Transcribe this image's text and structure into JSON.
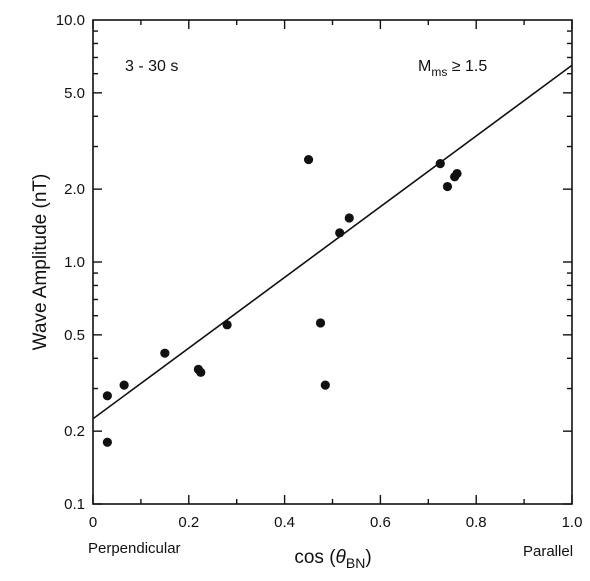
{
  "chart_data": {
    "type": "scatter",
    "xlabel_prefix": "cos (",
    "xlabel_theta": "θ",
    "xlabel_sub": "BN",
    "xlabel_suffix": ")",
    "ylabel": "Wave Amplitude (nT)",
    "xlim": [
      0,
      1.0
    ],
    "ylim": [
      0.1,
      10.0
    ],
    "yscale": "log",
    "x_tick_labels": [
      "0",
      "0.2",
      "0.4",
      "0.6",
      "0.8",
      "1.0"
    ],
    "x_ticks": [
      0,
      0.2,
      0.4,
      0.6,
      0.8,
      1.0
    ],
    "y_tick_labels": [
      "0.1",
      "0.2",
      "0.5",
      "1.0",
      "2.0",
      "5.0",
      "10.0"
    ],
    "y_ticks": [
      0.1,
      0.2,
      0.5,
      1.0,
      2.0,
      5.0,
      10.0
    ],
    "annotation_left": "3 - 30 s",
    "annotation_right_main": "M",
    "annotation_right_sub": "ms",
    "annotation_right_rest": " ≥ 1.5",
    "x_end_left": "Perpendicular",
    "x_end_right": "Parallel",
    "points": [
      {
        "x": 0.03,
        "y": 0.28
      },
      {
        "x": 0.03,
        "y": 0.18
      },
      {
        "x": 0.065,
        "y": 0.31
      },
      {
        "x": 0.15,
        "y": 0.42
      },
      {
        "x": 0.22,
        "y": 0.36
      },
      {
        "x": 0.225,
        "y": 0.35
      },
      {
        "x": 0.28,
        "y": 0.55
      },
      {
        "x": 0.45,
        "y": 2.65
      },
      {
        "x": 0.475,
        "y": 0.56
      },
      {
        "x": 0.485,
        "y": 0.31
      },
      {
        "x": 0.515,
        "y": 1.32
      },
      {
        "x": 0.535,
        "y": 1.52
      },
      {
        "x": 0.725,
        "y": 2.55
      },
      {
        "x": 0.74,
        "y": 2.05
      },
      {
        "x": 0.755,
        "y": 2.25
      },
      {
        "x": 0.76,
        "y": 2.32
      }
    ],
    "fit_line": [
      {
        "x": 0,
        "y": 0.225
      },
      {
        "x": 1.0,
        "y": 6.5
      }
    ],
    "grid": false
  }
}
